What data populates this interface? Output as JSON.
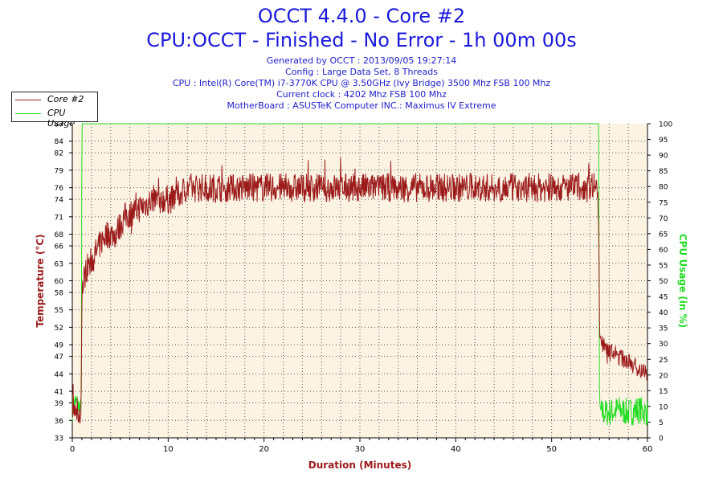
{
  "header": {
    "title": "OCCT 4.4.0 - Core #2",
    "subtitle": "CPU:OCCT - Finished - No Error - 1h 00m 00s",
    "info_lines": [
      "Generated by OCCT : 2013/09/05 19:27:14",
      "Config : Large Data Set, 8 Threads",
      "CPU : Intel(R) Core(TM) i7-3770K CPU @ 3.50GHz (Ivy Bridge) 3500 Mhz FSB 100 Mhz",
      "Current clock : 4202 Mhz FSB 100 Mhz",
      "MotherBoard : ASUSTeK Computer INC.: Maximus IV Extreme"
    ]
  },
  "colors": {
    "temperature": "#9b1b1b",
    "cpu_usage": "#22dd22",
    "plot_bg": "#fdf3e3",
    "grid": "#555555",
    "axis_text": "#000000"
  },
  "chart_data": {
    "type": "line",
    "xlabel": "Duration (Minutes)",
    "ylabel_left": "Temperature (°C)",
    "ylabel_right": "CPU Usage (in %)",
    "xlim": [
      0,
      60
    ],
    "ylim_left": [
      33,
      87
    ],
    "ylim_right": [
      0,
      100
    ],
    "x_ticks": [
      0,
      10,
      20,
      30,
      40,
      50,
      60
    ],
    "y_left_ticks": [
      33,
      36,
      39,
      41,
      44,
      47,
      49,
      52,
      55,
      58,
      60,
      63,
      66,
      68,
      71,
      74,
      76,
      79,
      82,
      84,
      87
    ],
    "y_right_ticks": [
      0,
      5,
      10,
      15,
      20,
      25,
      30,
      35,
      40,
      45,
      50,
      55,
      60,
      65,
      70,
      75,
      80,
      85,
      90,
      95,
      100
    ],
    "grid": true,
    "legend_position": "top-left",
    "series": [
      {
        "name": "Core #2",
        "axis": "left",
        "x": [
          0,
          0.5,
          0.8,
          0.9,
          1.0,
          1.3,
          1.7,
          2.2,
          2.8,
          3.5,
          4.5,
          5.5,
          6.5,
          7.5,
          8.5,
          9.5,
          10.5,
          12,
          14,
          16,
          18,
          20,
          22,
          24,
          26,
          28,
          30,
          32,
          34,
          36,
          38,
          40,
          42,
          44,
          46,
          48,
          50,
          52,
          54,
          54.7,
          54.9,
          55.0,
          55.3,
          56,
          57,
          58,
          59,
          60
        ],
        "y": [
          38,
          37,
          36.5,
          37,
          58,
          61,
          63,
          64,
          66,
          68,
          68,
          71,
          72,
          73,
          74,
          74,
          74,
          76,
          76,
          76,
          76,
          76,
          76,
          76,
          76,
          76,
          76,
          76,
          76,
          76,
          76,
          76,
          76,
          76,
          76,
          76,
          76,
          76,
          76.5,
          77,
          70,
          51,
          49,
          48,
          47,
          46,
          45,
          44
        ]
      },
      {
        "name": "CPU Usage",
        "axis": "right",
        "x": [
          0,
          0.4,
          0.8,
          0.9,
          1.0,
          54.9,
          55.0,
          55.2,
          56,
          57,
          58,
          59,
          60
        ],
        "y": [
          10,
          11,
          9,
          8,
          100,
          100,
          8,
          8,
          8,
          9,
          8,
          9,
          8
        ]
      }
    ]
  }
}
